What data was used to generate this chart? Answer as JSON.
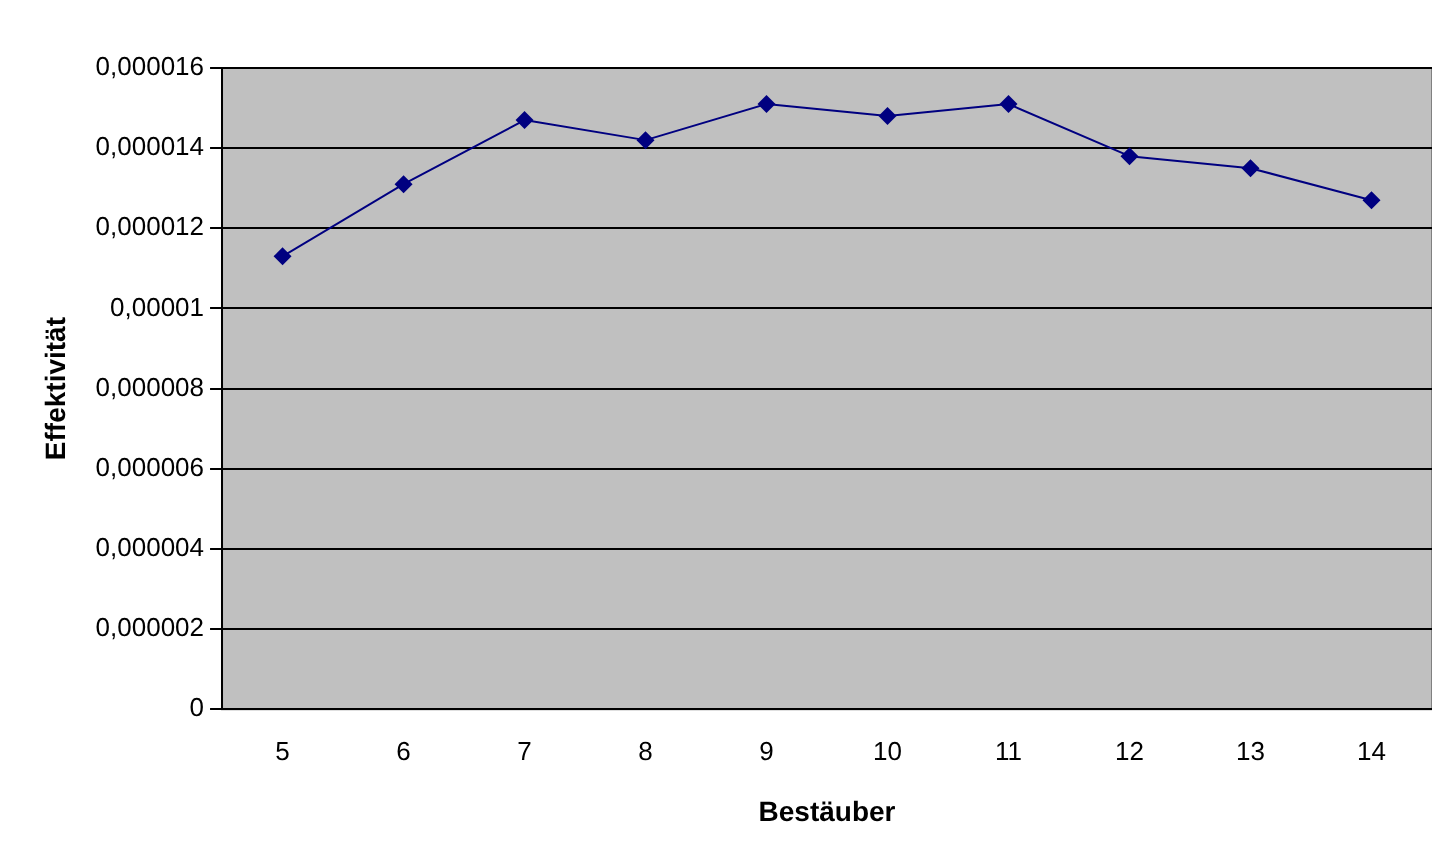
{
  "chart_data": {
    "type": "line",
    "xlabel": "Bestäuber",
    "ylabel": "Effektivität",
    "categories": [
      "5",
      "6",
      "7",
      "8",
      "9",
      "10",
      "11",
      "12",
      "13",
      "14"
    ],
    "series": [
      {
        "color": "#000080",
        "values": [
          1.13e-05,
          1.31e-05,
          1.47e-05,
          1.42e-05,
          1.51e-05,
          1.48e-05,
          1.51e-05,
          1.38e-05,
          1.35e-05,
          1.27e-05
        ]
      }
    ],
    "ylim": [
      0,
      1.6e-05
    ],
    "yticks": [
      {
        "value": 0,
        "label": "0"
      },
      {
        "value": 2e-06,
        "label": "0,000002"
      },
      {
        "value": 4e-06,
        "label": "0,000004"
      },
      {
        "value": 6e-06,
        "label": "0,000006"
      },
      {
        "value": 8e-06,
        "label": "0,000008"
      },
      {
        "value": 1e-05,
        "label": "0,00001"
      },
      {
        "value": 1.2e-05,
        "label": "0,000012"
      },
      {
        "value": 1.4e-05,
        "label": "0,000014"
      },
      {
        "value": 1.6e-05,
        "label": "0,000016"
      }
    ],
    "grid": "y",
    "legend": false,
    "marker": "diamond",
    "line_style": "solid"
  }
}
